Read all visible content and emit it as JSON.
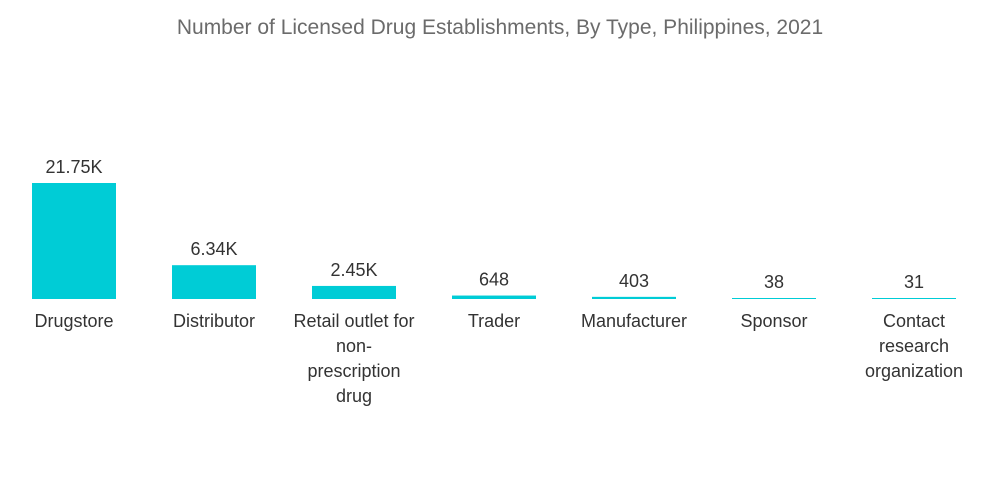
{
  "chart_data": {
    "type": "bar",
    "title": "Number of Licensed Drug Establishments, By Type, Philippines, 2021",
    "categories": [
      [
        "Drugstore"
      ],
      [
        "Distributor"
      ],
      [
        "Retail outlet for",
        "non-",
        "prescription",
        "drug"
      ],
      [
        "Trader"
      ],
      [
        "Manufacturer"
      ],
      [
        "Sponsor"
      ],
      [
        "Contact",
        "research",
        "organization"
      ]
    ],
    "values": [
      21750,
      6340,
      2450,
      648,
      403,
      38,
      31
    ],
    "value_labels": [
      "21.75K",
      "6.34K",
      "2.45K",
      "648",
      "403",
      "38",
      "31"
    ],
    "ylim": [
      0,
      21750
    ],
    "grid": false,
    "legend": "none",
    "colors": {
      "bar": "#00ccd6",
      "text": "#333333",
      "title": "#6b6b6b"
    }
  }
}
